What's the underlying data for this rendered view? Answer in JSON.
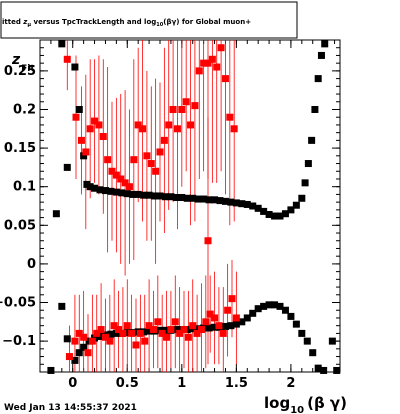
{
  "chart_data": {
    "type": "scatter",
    "title_prefix": "itted ",
    "title_symbol": "z",
    "title_symbol_sub": "μ",
    "title_middle": " versus TpcTrackLength and log",
    "title_log_sub": "10",
    "title_suffix": "(βγ) for Global muon+",
    "ylabel": "z",
    "ylabel_sub": "Fit",
    "xlabel": "log",
    "xlabel_sub": "10",
    "xlabel_suffix": "(β γ)",
    "footer": "Wed Jan 13 14:55:37 2021",
    "xlim": [
      -0.3,
      2.45
    ],
    "ylim": [
      -0.14,
      0.29
    ],
    "xticks": [
      0,
      0.5,
      1,
      1.5,
      2
    ],
    "xtick_labels": [
      "0",
      "0.5",
      "1",
      "1.5",
      "2"
    ],
    "yticks": [
      -0.1,
      -0.05,
      0,
      0.05,
      0.1,
      0.15,
      0.2,
      0.25
    ],
    "ytick_labels": [
      "−0.1",
      "−0.05",
      "0",
      "0.05",
      "0.1",
      "0.15",
      "0.2",
      "0.25"
    ],
    "colors": {
      "black_series": "#000000",
      "red_series": "#ff0000"
    },
    "series": [
      {
        "color": "black",
        "points": [
          [
            -0.2,
            -0.138,
            0
          ],
          [
            -0.15,
            0.065,
            0
          ],
          [
            -0.1,
            0.285,
            0
          ],
          [
            -0.05,
            0.125,
            0
          ],
          [
            0.02,
            0.255,
            0
          ],
          [
            0.06,
            0.2,
            0
          ],
          [
            0.1,
            0.14,
            0
          ],
          [
            0.13,
            0.103,
            0
          ],
          [
            0.16,
            0.1,
            0
          ],
          [
            0.2,
            0.098,
            0
          ],
          [
            0.25,
            0.096,
            0
          ],
          [
            0.3,
            0.095,
            0
          ],
          [
            0.35,
            0.094,
            0
          ],
          [
            0.4,
            0.093,
            0
          ],
          [
            0.45,
            0.092,
            0
          ],
          [
            0.5,
            0.091,
            0
          ],
          [
            0.55,
            0.09,
            0
          ],
          [
            0.6,
            0.09,
            0
          ],
          [
            0.65,
            0.089,
            0
          ],
          [
            0.7,
            0.089,
            0
          ],
          [
            0.75,
            0.088,
            0
          ],
          [
            0.8,
            0.088,
            0
          ],
          [
            0.85,
            0.087,
            0
          ],
          [
            0.9,
            0.087,
            0
          ],
          [
            0.95,
            0.086,
            0
          ],
          [
            1.0,
            0.086,
            0
          ],
          [
            1.05,
            0.085,
            0
          ],
          [
            1.1,
            0.085,
            0
          ],
          [
            1.15,
            0.084,
            0
          ],
          [
            1.2,
            0.084,
            0
          ],
          [
            1.25,
            0.083,
            0
          ],
          [
            1.3,
            0.083,
            0
          ],
          [
            1.35,
            0.082,
            0
          ],
          [
            1.4,
            0.081,
            0
          ],
          [
            1.45,
            0.08,
            0
          ],
          [
            1.5,
            0.079,
            0
          ],
          [
            1.55,
            0.078,
            0
          ],
          [
            1.6,
            0.077,
            0
          ],
          [
            1.65,
            0.075,
            0
          ],
          [
            1.7,
            0.072,
            0
          ],
          [
            1.75,
            0.068,
            0
          ],
          [
            1.8,
            0.064,
            0
          ],
          [
            1.85,
            0.062,
            0
          ],
          [
            1.9,
            0.062,
            0
          ],
          [
            1.95,
            0.065,
            0
          ],
          [
            2.0,
            0.07,
            0
          ],
          [
            2.05,
            0.076,
            0
          ],
          [
            2.1,
            0.085,
            0
          ],
          [
            2.13,
            0.105,
            0
          ],
          [
            2.16,
            0.13,
            0
          ],
          [
            2.19,
            0.16,
            0
          ],
          [
            2.22,
            0.2,
            0
          ],
          [
            2.25,
            0.24,
            0
          ],
          [
            2.28,
            0.27,
            0
          ],
          [
            2.31,
            0.285,
            0
          ],
          [
            -0.1,
            -0.055,
            0
          ],
          [
            -0.05,
            -0.097,
            0
          ],
          [
            0.02,
            -0.125,
            0
          ],
          [
            0.06,
            -0.115,
            0
          ],
          [
            0.1,
            -0.108,
            0
          ],
          [
            0.15,
            -0.1,
            0
          ],
          [
            0.2,
            -0.096,
            0
          ],
          [
            0.25,
            -0.094,
            0
          ],
          [
            0.3,
            -0.092,
            0
          ],
          [
            0.35,
            -0.091,
            0
          ],
          [
            0.4,
            -0.09,
            0
          ],
          [
            0.45,
            -0.09,
            0
          ],
          [
            0.5,
            -0.089,
            0
          ],
          [
            0.55,
            -0.089,
            0
          ],
          [
            0.6,
            -0.088,
            0
          ],
          [
            0.65,
            -0.088,
            0
          ],
          [
            0.7,
            -0.087,
            0
          ],
          [
            0.75,
            -0.087,
            0
          ],
          [
            0.8,
            -0.086,
            0
          ],
          [
            0.85,
            -0.086,
            0
          ],
          [
            0.9,
            -0.086,
            0
          ],
          [
            0.95,
            -0.085,
            0
          ],
          [
            1.0,
            -0.085,
            0
          ],
          [
            1.05,
            -0.085,
            0
          ],
          [
            1.1,
            -0.084,
            0
          ],
          [
            1.15,
            -0.084,
            0
          ],
          [
            1.2,
            -0.083,
            0
          ],
          [
            1.25,
            -0.083,
            0
          ],
          [
            1.3,
            -0.082,
            0
          ],
          [
            1.35,
            -0.082,
            0
          ],
          [
            1.4,
            -0.081,
            0
          ],
          [
            1.45,
            -0.08,
            0
          ],
          [
            1.5,
            -0.078,
            0
          ],
          [
            1.55,
            -0.075,
            0
          ],
          [
            1.6,
            -0.07,
            0
          ],
          [
            1.65,
            -0.064,
            0
          ],
          [
            1.7,
            -0.058,
            0
          ],
          [
            1.75,
            -0.055,
            0
          ],
          [
            1.8,
            -0.053,
            0
          ],
          [
            1.85,
            -0.053,
            0
          ],
          [
            1.9,
            -0.055,
            0
          ],
          [
            1.95,
            -0.06,
            0
          ],
          [
            2.0,
            -0.068,
            0
          ],
          [
            2.05,
            -0.078,
            0
          ],
          [
            2.1,
            -0.09,
            0
          ],
          [
            2.15,
            -0.1,
            0
          ],
          [
            2.2,
            -0.115,
            0
          ],
          [
            2.25,
            -0.135,
            0
          ],
          [
            2.3,
            -0.138,
            0
          ],
          [
            2.38,
            -0.1,
            0
          ],
          [
            2.42,
            -0.138,
            0
          ]
        ]
      },
      {
        "color": "red",
        "points": [
          [
            -0.05,
            0.265,
            0.04
          ],
          [
            0.03,
            0.19,
            0.08
          ],
          [
            0.08,
            0.16,
            0.07
          ],
          [
            0.12,
            0.145,
            0.1
          ],
          [
            0.16,
            0.175,
            0.09
          ],
          [
            0.2,
            0.185,
            0.08
          ],
          [
            0.24,
            0.18,
            0.09
          ],
          [
            0.28,
            0.165,
            0.1
          ],
          [
            0.32,
            0.135,
            0.12
          ],
          [
            0.36,
            0.12,
            0.09
          ],
          [
            0.4,
            0.115,
            0.1
          ],
          [
            0.44,
            0.11,
            0.11
          ],
          [
            0.48,
            0.105,
            0.12
          ],
          [
            0.52,
            0.1,
            0.1
          ],
          [
            0.56,
            0.135,
            0.13
          ],
          [
            0.6,
            0.18,
            0.1
          ],
          [
            0.64,
            0.175,
            0.12
          ],
          [
            0.68,
            0.14,
            0.11
          ],
          [
            0.72,
            0.13,
            0.1
          ],
          [
            0.76,
            0.12,
            0.12
          ],
          [
            0.8,
            0.145,
            0.09
          ],
          [
            0.84,
            0.16,
            0.12
          ],
          [
            0.88,
            0.18,
            0.11
          ],
          [
            0.92,
            0.2,
            0.12
          ],
          [
            0.96,
            0.175,
            0.13
          ],
          [
            1.0,
            0.2,
            0.1
          ],
          [
            1.04,
            0.21,
            0.09
          ],
          [
            1.08,
            0.18,
            0.13
          ],
          [
            1.12,
            0.205,
            0.15
          ],
          [
            1.16,
            0.25,
            0.14
          ],
          [
            1.2,
            0.26,
            0.14
          ],
          [
            1.24,
            0.26,
            0.15
          ],
          [
            1.28,
            0.265,
            0.16
          ],
          [
            1.32,
            0.255,
            0.15
          ],
          [
            1.36,
            0.28,
            0.16
          ],
          [
            1.4,
            0.24,
            0.15
          ],
          [
            1.44,
            0.19,
            0.14
          ],
          [
            1.48,
            0.175,
            0.12
          ],
          [
            1.24,
            0.03,
            0.16
          ],
          [
            -0.03,
            -0.12,
            0.04
          ],
          [
            0.02,
            -0.1,
            0.06
          ],
          [
            0.06,
            -0.09,
            0.05
          ],
          [
            0.1,
            -0.095,
            0.06
          ],
          [
            0.14,
            -0.115,
            0.05
          ],
          [
            0.18,
            -0.1,
            0.06
          ],
          [
            0.22,
            -0.09,
            0.05
          ],
          [
            0.26,
            -0.085,
            0.06
          ],
          [
            0.3,
            -0.095,
            0.05
          ],
          [
            0.34,
            -0.1,
            0.06
          ],
          [
            0.38,
            -0.08,
            0.06
          ],
          [
            0.42,
            -0.085,
            0.05
          ],
          [
            0.46,
            -0.09,
            0.06
          ],
          [
            0.5,
            -0.08,
            0.06
          ],
          [
            0.54,
            -0.09,
            0.05
          ],
          [
            0.58,
            -0.105,
            0.06
          ],
          [
            0.62,
            -0.09,
            0.05
          ],
          [
            0.66,
            -0.1,
            0.06
          ],
          [
            0.7,
            -0.08,
            0.06
          ],
          [
            0.74,
            -0.085,
            0.05
          ],
          [
            0.78,
            -0.075,
            0.06
          ],
          [
            0.82,
            -0.09,
            0.05
          ],
          [
            0.86,
            -0.095,
            0.06
          ],
          [
            0.9,
            -0.085,
            0.05
          ],
          [
            0.94,
            -0.075,
            0.06
          ],
          [
            0.98,
            -0.09,
            0.06
          ],
          [
            1.02,
            -0.085,
            0.05
          ],
          [
            1.06,
            -0.095,
            0.06
          ],
          [
            1.1,
            -0.08,
            0.06
          ],
          [
            1.14,
            -0.09,
            0.05
          ],
          [
            1.18,
            -0.085,
            0.06
          ],
          [
            1.22,
            -0.075,
            0.06
          ],
          [
            1.26,
            -0.065,
            0.05
          ],
          [
            1.3,
            -0.07,
            0.06
          ],
          [
            1.34,
            -0.08,
            0.05
          ],
          [
            1.38,
            -0.09,
            0.06
          ],
          [
            1.42,
            -0.06,
            0.06
          ],
          [
            1.46,
            -0.045,
            0.05
          ],
          [
            1.5,
            -0.07,
            0.06
          ]
        ]
      }
    ]
  }
}
